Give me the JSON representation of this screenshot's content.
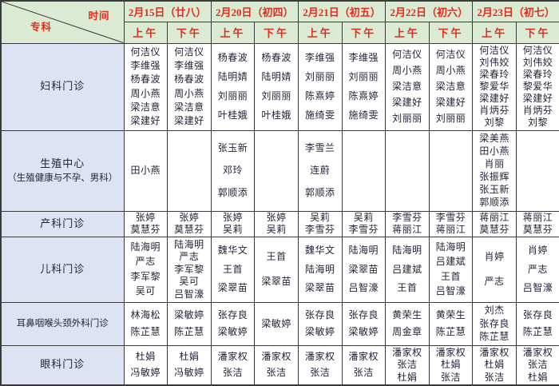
{
  "colors": {
    "header_bg": "#dbead3",
    "dept_bg": "#dde3f2",
    "header_text": "#e02b1d",
    "cell_text": "#23233a",
    "border": "#3a3a3a"
  },
  "corner": {
    "time_label": "时间",
    "dept_label": "专科"
  },
  "header": {
    "dates": [
      "2月15日（廿八）",
      "2月20日（初四）",
      "2月21日（初五）",
      "2月22日（初六）",
      "2月23日（初七）"
    ],
    "am": "上午",
    "pm": "下午"
  },
  "rows": [
    {
      "id": "fuke",
      "dept_lines": [
        "妇科门诊"
      ],
      "cells": [
        [
          "何洁仪",
          "李维强",
          "杨春波",
          "周小燕",
          "梁洁意",
          "梁建好"
        ],
        [
          "何洁仪",
          "李维强",
          "杨春波",
          "周小燕",
          "梁洁意",
          "梁建好"
        ],
        [
          "杨春波",
          "陆明婧",
          "刘丽丽",
          "叶桂娥"
        ],
        [
          "杨春波",
          "陆明婧",
          "刘丽丽",
          "叶桂娥"
        ],
        [
          "李维强",
          "刘丽丽",
          "陈熹婷",
          "施绮雯"
        ],
        [
          "李维强",
          "刘丽丽",
          "陈熹婷",
          "施绮雯"
        ],
        [
          "何洁仪",
          "周小燕",
          "梁洁意",
          "梁建好",
          "刘丽丽"
        ],
        [
          "何洁仪",
          "周小燕",
          "梁洁意",
          "梁建好",
          "刘丽丽"
        ],
        [
          "何洁仪",
          "刘伟姣",
          "梁春玲",
          "黎爱华",
          "梁建好",
          "肖炳芬",
          "刘黎"
        ],
        [
          "何洁仪",
          "刘伟姣",
          "梁春玲",
          "黎爱华",
          "梁建好",
          "肖炳芬",
          "刘黎"
        ]
      ]
    },
    {
      "id": "shengzhi",
      "dept_lines": [
        "生殖中心",
        "（生殖健康与不孕、男科）"
      ],
      "cells": [
        [
          "田小燕"
        ],
        [],
        [
          "张玉新",
          "邓玲",
          "郭顺添"
        ],
        [],
        [
          "李雪兰",
          "连蔚",
          "郭顺添"
        ],
        [],
        [],
        [],
        [
          "梁美燕",
          "田小燕",
          "肖丽",
          "张振辉",
          "张玉新",
          "郭顺添"
        ],
        []
      ]
    },
    {
      "id": "chanke",
      "dept_lines": [
        "产科门诊"
      ],
      "cells": [
        [
          "张婷",
          "莫慧芬"
        ],
        [
          "张婷",
          "莫慧芬"
        ],
        [
          "张婷",
          "吴莉"
        ],
        [
          "张婷",
          "吴莉"
        ],
        [
          "吴莉",
          "李雪芬"
        ],
        [
          "吴莉",
          "李雪芬"
        ],
        [
          "李雪芬",
          "蒋丽江"
        ],
        [
          "李雪芬",
          "蒋丽江"
        ],
        [
          "蒋丽江",
          "莫慧芬"
        ],
        [
          "蒋丽江",
          "莫慧芬"
        ]
      ]
    },
    {
      "id": "erke",
      "dept_lines": [
        "儿科门诊"
      ],
      "cells": [
        [
          "陆海明",
          "严志",
          "李军黎",
          "吴可"
        ],
        [
          "陆海明",
          "严志",
          "李军黎",
          "吴可",
          "吕智濠"
        ],
        [
          "魏华文",
          "王首",
          "梁翠苗"
        ],
        [
          "王首",
          "梁翠苗"
        ],
        [
          "魏华文",
          "陆海明",
          "梁翠苗"
        ],
        [
          "陆海明",
          "梁翠苗",
          "吕智濠"
        ],
        [
          "陆海明",
          "吕建斌",
          "王首"
        ],
        [
          "陆海明",
          "吕建斌",
          "王首",
          "吕智濠"
        ],
        [
          "肖婷",
          "严志"
        ],
        [
          "肖婷",
          "严志",
          "吕智濠"
        ]
      ]
    },
    {
      "id": "erbiyanhou",
      "dept_lines": [
        "耳鼻咽喉头颈外科门诊"
      ],
      "cells": [
        [
          "林海松",
          "陈芷慧"
        ],
        [
          "梁敏婷",
          "陈芷慧"
        ],
        [
          "张存良",
          "梁敏婷"
        ],
        [
          "梁敏婷"
        ],
        [
          "张存良",
          "梁敏婷"
        ],
        [
          "张存良",
          "梁敏婷"
        ],
        [
          "黄荣生",
          "周金章"
        ],
        [
          "黄荣生",
          "陈芷慧"
        ],
        [
          "刘杰",
          "张存良",
          "陈芷慧"
        ],
        [
          "张存良",
          "陈芷慧"
        ]
      ]
    },
    {
      "id": "yanke",
      "dept_lines": [
        "眼科门诊"
      ],
      "cells": [
        [
          "杜娟",
          "冯敏婷"
        ],
        [
          "杜娟",
          "冯敏婷"
        ],
        [
          "潘家权",
          "张洁"
        ],
        [
          "潘家权",
          "张洁"
        ],
        [
          "潘家权",
          "张洁"
        ],
        [
          "潘家权",
          "张洁"
        ],
        [
          "潘家权",
          "张洁",
          "杜娟"
        ],
        [
          "潘家权",
          "杜娟",
          "张洁"
        ],
        [
          "潘家权",
          "杜娟",
          "张洁"
        ],
        [
          "潘家权",
          "张洁",
          "杜娟"
        ]
      ]
    }
  ]
}
